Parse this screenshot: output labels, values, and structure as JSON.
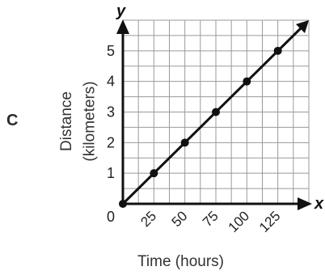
{
  "option_letter": "C",
  "chart_data": {
    "type": "line",
    "xlabel": "Time (hours)",
    "ylabel_lines": [
      "Distance",
      "(kilometers)"
    ],
    "axis_x_name": "x",
    "axis_y_name": "y",
    "origin_label": "0",
    "x_ticks": [
      "25",
      "50",
      "75",
      "100",
      "125"
    ],
    "y_ticks": [
      "1",
      "2",
      "3",
      "4",
      "5"
    ],
    "xlim": [
      0,
      150
    ],
    "ylim": [
      0,
      6
    ],
    "grid": true,
    "series": [
      {
        "x": [
          0,
          25,
          50,
          75,
          100,
          125
        ],
        "y": [
          0,
          1,
          2,
          3,
          4,
          5
        ]
      }
    ],
    "line_extends_to": [
      150,
      6
    ]
  }
}
